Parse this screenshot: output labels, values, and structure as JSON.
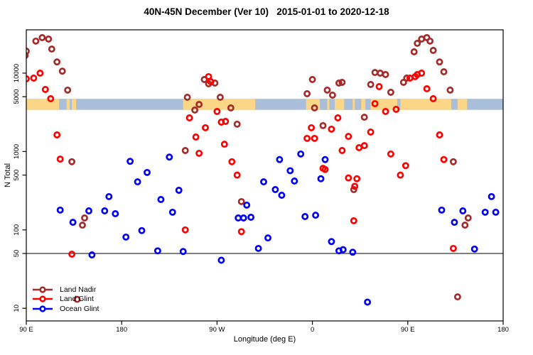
{
  "chart_data": {
    "type": "scatter",
    "title": "40N-45N December (Ver 10)   2015-01-01 to 2020-12-18",
    "xlabel": "Longitude (deg E)",
    "ylabel": "N Total",
    "x_axis": {
      "note": "longitude axis starts at 90E, wraps eastward around globe to 180 (450 deg total)",
      "range_deg": [
        90,
        540
      ],
      "ticks": [
        {
          "pos": 90,
          "label": "90 E"
        },
        {
          "pos": 180,
          "label": "180"
        },
        {
          "pos": 270,
          "label": "90 W"
        },
        {
          "pos": 360,
          "label": "0"
        },
        {
          "pos": 450,
          "label": "90 E"
        },
        {
          "pos": 540,
          "label": "180"
        }
      ]
    },
    "y_axis": {
      "scale": "log10",
      "range": [
        7,
        36000
      ],
      "ticks": [
        {
          "value": 10,
          "label": "10"
        },
        {
          "value": 50,
          "label": "50"
        },
        {
          "value": 100,
          "label": "100"
        },
        {
          "value": 500,
          "label": "500"
        },
        {
          "value": 1000,
          "label": "1000"
        },
        {
          "value": 5000,
          "label": "5000"
        },
        {
          "value": 10000,
          "label": "10000"
        }
      ]
    },
    "reference_line": {
      "value": 50,
      "color": "#000000"
    },
    "map_band": {
      "description": "coastline strip showing land/ocean along longitude",
      "value_top": 4700,
      "value_bottom": 3400,
      "ocean_color": "#A9BED9",
      "land_color": "#FBD687",
      "land_segments_deg": [
        [
          90,
          121
        ],
        [
          128,
          131
        ],
        [
          133,
          137
        ],
        [
          238,
          306
        ],
        [
          354,
          491
        ],
        [
          497,
          506
        ]
      ],
      "ocean_patches_deg": [
        [
          367,
          374
        ],
        [
          376,
          381
        ],
        [
          390,
          398
        ],
        [
          400,
          406
        ],
        [
          410,
          415
        ],
        [
          440,
          443
        ]
      ]
    },
    "series": [
      {
        "name": "Land Nadir",
        "color": "#A52A2A",
        "points": [
          [
            89,
            16800
          ],
          [
            90,
            19100
          ],
          [
            99,
            25600
          ],
          [
            105,
            28400
          ],
          [
            111,
            27200
          ],
          [
            114,
            20300
          ],
          [
            119,
            13900
          ],
          [
            124,
            10600
          ],
          [
            129,
            6070
          ],
          [
            133,
            740
          ],
          [
            138,
            13
          ],
          [
            143,
            115
          ],
          [
            145,
            142
          ],
          [
            240,
            1030
          ],
          [
            242,
            4920
          ],
          [
            249,
            3380
          ],
          [
            253,
            3990
          ],
          [
            258,
            8280
          ],
          [
            262,
            7310
          ],
          [
            268,
            7460
          ],
          [
            273,
            4920
          ],
          [
            283,
            3600
          ],
          [
            289,
            2230
          ],
          [
            293,
            230
          ],
          [
            355,
            5460
          ],
          [
            360,
            8280
          ],
          [
            362,
            3600
          ],
          [
            370,
            2140
          ],
          [
            374,
            6070
          ],
          [
            379,
            5240
          ],
          [
            385,
            7460
          ],
          [
            388,
            7620
          ],
          [
            399,
            327
          ],
          [
            409,
            2740
          ],
          [
            415,
            7160
          ],
          [
            419,
            10200
          ],
          [
            424,
            10000
          ],
          [
            429,
            9590
          ],
          [
            434,
            5690
          ],
          [
            446,
            7620
          ],
          [
            449,
            8650
          ],
          [
            456,
            18700
          ],
          [
            459,
            24000
          ],
          [
            463,
            27200
          ],
          [
            468,
            28400
          ],
          [
            471,
            25600
          ],
          [
            474,
            19500
          ],
          [
            480,
            13900
          ],
          [
            484,
            10400
          ],
          [
            490,
            6070
          ],
          [
            493,
            740
          ],
          [
            497,
            14
          ],
          [
            504,
            115
          ],
          [
            507,
            142
          ]
        ]
      },
      {
        "name": "Land Glint",
        "color": "#FF0000",
        "points": [
          [
            90,
            8470
          ],
          [
            97,
            8650
          ],
          [
            103,
            10000
          ],
          [
            108,
            6190
          ],
          [
            113,
            4720
          ],
          [
            119,
            1630
          ],
          [
            122,
            800
          ],
          [
            133,
            49
          ],
          [
            240,
            100
          ],
          [
            244,
            2690
          ],
          [
            250,
            1530
          ],
          [
            253,
            950
          ],
          [
            259,
            2010
          ],
          [
            262,
            9020
          ],
          [
            264,
            7780
          ],
          [
            270,
            3240
          ],
          [
            274,
            2370
          ],
          [
            277,
            1240
          ],
          [
            278,
            2420
          ],
          [
            284,
            740
          ],
          [
            289,
            500
          ],
          [
            293,
            95
          ],
          [
            355,
            1470
          ],
          [
            359,
            2010
          ],
          [
            362,
            1470
          ],
          [
            370,
            610
          ],
          [
            372,
            590
          ],
          [
            378,
            1930
          ],
          [
            384,
            2690
          ],
          [
            388,
            1030
          ],
          [
            394,
            1560
          ],
          [
            394,
            460
          ],
          [
            399,
            131
          ],
          [
            400,
            360
          ],
          [
            402,
            450
          ],
          [
            404,
            1120
          ],
          [
            409,
            1190
          ],
          [
            415,
            1770
          ],
          [
            419,
            4080
          ],
          [
            423,
            6730
          ],
          [
            429,
            3240
          ],
          [
            434,
            930
          ],
          [
            439,
            3450
          ],
          [
            443,
            500
          ],
          [
            448,
            660
          ],
          [
            452,
            8650
          ],
          [
            457,
            9020
          ],
          [
            459,
            9590
          ],
          [
            463,
            10000
          ],
          [
            468,
            6320
          ],
          [
            474,
            4720
          ],
          [
            480,
            1630
          ],
          [
            484,
            790
          ],
          [
            493,
            58
          ]
        ]
      },
      {
        "name": "Ocean Glint",
        "color": "#0000FF",
        "points": [
          [
            122,
            179
          ],
          [
            134,
            125
          ],
          [
            149,
            175
          ],
          [
            152,
            48
          ],
          [
            164,
            175
          ],
          [
            168,
            266
          ],
          [
            174,
            161
          ],
          [
            184,
            81
          ],
          [
            188,
            750
          ],
          [
            195,
            410
          ],
          [
            199,
            98
          ],
          [
            204,
            540
          ],
          [
            214,
            54
          ],
          [
            217,
            244
          ],
          [
            225,
            850
          ],
          [
            228,
            168
          ],
          [
            234,
            320
          ],
          [
            238,
            53
          ],
          [
            274,
            41
          ],
          [
            290,
            142
          ],
          [
            295,
            142
          ],
          [
            298,
            207
          ],
          [
            302,
            145
          ],
          [
            309,
            58
          ],
          [
            314,
            410
          ],
          [
            318,
            79
          ],
          [
            325,
            327
          ],
          [
            329,
            790
          ],
          [
            331,
            277
          ],
          [
            339,
            570
          ],
          [
            343,
            420
          ],
          [
            349,
            930
          ],
          [
            353,
            148
          ],
          [
            363,
            154
          ],
          [
            368,
            450
          ],
          [
            372,
            790
          ],
          [
            378,
            71
          ],
          [
            385,
            54
          ],
          [
            389,
            56
          ],
          [
            398,
            52
          ],
          [
            412,
            12
          ],
          [
            482,
            179
          ],
          [
            494,
            125
          ],
          [
            502,
            175
          ],
          [
            513,
            57
          ],
          [
            523,
            168
          ],
          [
            529,
            266
          ],
          [
            533,
            168
          ]
        ]
      }
    ],
    "legend": {
      "position": "bottom-left",
      "items": [
        "Land Nadir",
        "Land Glint",
        "Ocean Glint"
      ]
    }
  }
}
